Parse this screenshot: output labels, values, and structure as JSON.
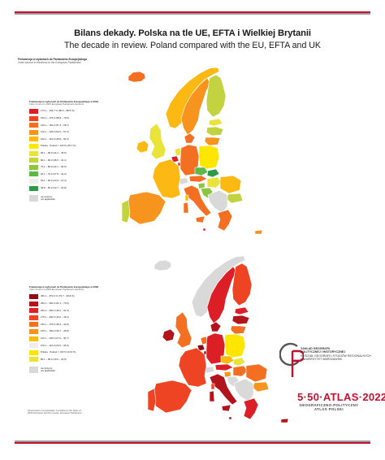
{
  "title_pl": "Bilans dekady. Polska na tle UE, EFTA i Wielkiej Brytanii",
  "title_en": "The decade in review. Poland compared with the EU, EFTA and UK",
  "map_header": {
    "pl": "Frekwencja w wyborach do Parlamentu Europejskiego",
    "en": "Voter turnout in elections to the European Parliament"
  },
  "legend_2019": {
    "title_pl": "Frekwencja w wyborach do Parlamentu Europejskiego w 2019",
    "title_en": "Voter turnout in 2019 European Parliament elections",
    "items": [
      {
        "label": "175,1 – 193,7 % (80,6 – 88,5 %)",
        "color": "#dc1f26"
      },
      {
        "label": "150,1 – 175,0 (68,8 – 79,9)",
        "color": "#ee4424"
      },
      {
        "label": "125,1 – 150,0 (57,4 – 68,7)",
        "color": "#f36f21"
      },
      {
        "label": "110,1 – 125,0 (50,3 – 57,3)",
        "color": "#f7941d"
      },
      {
        "label": "100,1 – 110,0 (45,8 – 50,2)",
        "color": "#fdb913"
      },
      {
        "label": "Polska · Poland = 100 % (45,7 %)",
        "color": "#ffe600"
      },
      {
        "label": "90,1 – 99,9 (41,2 – 45,6)",
        "color": "#e9e33a"
      },
      {
        "label": "80,1 – 90,0 (36,6 – 41,1)",
        "color": "#c3d23f"
      },
      {
        "label": "70,1 – 80,0 (32,1 – 36,5)",
        "color": "#8cc63f"
      },
      {
        "label": "60,1 – 70,0 (27,5 – 32,0)",
        "color": "#5cb848"
      },
      {
        "label": "50,1 – 60,0 (22,9 – 27,4)",
        "color": "#eeeeee"
      },
      {
        "label": "49,8 – 50,0 (22,7 – 22,8)",
        "color": "#2e9a47"
      }
    ],
    "nodata_pl": "nie dotyczy",
    "nodata_en": "not applicable"
  },
  "legend_2009": {
    "title_pl": "Frekwencja w wyborach do Parlamentu Europejskiego w 2009",
    "title_en": "Voter turnout in 2009 European Parliament elections",
    "items": [
      {
        "label": "300,1 – 370,0 % (73,7 – 90,8 %)",
        "color": "#8b0d16"
      },
      {
        "label": "250,1 – 300,0 (61,4 – 73,6)",
        "color": "#b2141c"
      },
      {
        "label": "200,1 – 250,0 (49,2 – 61,3)",
        "color": "#dc1f26"
      },
      {
        "label": "175,1 – 200,0 (43,0 – 49,1)",
        "color": "#ee4424"
      },
      {
        "label": "150,1 – 175,0 (36,9 – 42,9)",
        "color": "#f36f21"
      },
      {
        "label": "125,1 – 150,0 (30,7 – 36,8)",
        "color": "#f7941d"
      },
      {
        "label": "110,1 – 125,0 (27,0 – 30,7)",
        "color": "#fdb913"
      },
      {
        "label": "100,1 – 110,0 (24,6 – 26,9)",
        "color": "#eeeeee"
      },
      {
        "label": "Polska · Poland = 100 % (24,5 %)",
        "color": "#ffe600"
      },
      {
        "label": "80,1 – 99,0 (19,6 – 22,5)",
        "color": "#e9e33a"
      }
    ],
    "nodata_pl": "nie dotyczy",
    "nodata_en": "not applicable"
  },
  "source": {
    "line1": "Opracowano na podstawie: Compiled on the basis of:",
    "line2": "2019 European election results, European Parliament"
  },
  "department": {
    "line1": "ZAKŁAD GEOGRAFII",
    "line2": "POLITYCZNEJ I HISTORYCZNEJ",
    "line3": "WYDZIAŁ GEOGRAFII I STUDIÓW REGIONALNYCH",
    "line4": "UNIWERSYTET WARSZAWSKI"
  },
  "atlas": {
    "main": "5·50·ATLAS·2022",
    "sub1": "GEOGRAFICZNO-POLITYCZNY",
    "sub2": "ATLAS POLSKI"
  },
  "colors": {
    "accent_red": "#c8102e",
    "rule_grey": "#9a9a9a",
    "no_data": "#d9d9d9",
    "border": "#ffffff"
  },
  "maps": [
    {
      "name": "map-2019",
      "regions": [
        {
          "name": "iceland",
          "color": "#f36f21"
        },
        {
          "name": "norway",
          "color": "#fdb913"
        },
        {
          "name": "sweden",
          "color": "#f7941d"
        },
        {
          "name": "finland",
          "color": "#c3d23f"
        },
        {
          "name": "estonia",
          "color": "#e9e33a"
        },
        {
          "name": "latvia",
          "color": "#c3d23f"
        },
        {
          "name": "lithuania",
          "color": "#f7941d"
        },
        {
          "name": "ireland",
          "color": "#fdb913"
        },
        {
          "name": "united-kingdom",
          "color": "#e9e33a"
        },
        {
          "name": "denmark",
          "color": "#f36f21"
        },
        {
          "name": "netherlands",
          "color": "#e9e33a"
        },
        {
          "name": "belgium",
          "color": "#dc1f26"
        },
        {
          "name": "luxembourg",
          "color": "#dc1f26"
        },
        {
          "name": "germany",
          "color": "#f36f21"
        },
        {
          "name": "poland",
          "color": "#ffe600"
        },
        {
          "name": "czechia",
          "color": "#5cb848"
        },
        {
          "name": "slovakia",
          "color": "#2e9a47"
        },
        {
          "name": "austria",
          "color": "#f36f21"
        },
        {
          "name": "switzerland",
          "color": "#d9d9d9"
        },
        {
          "name": "france",
          "color": "#fdb913"
        },
        {
          "name": "hungary",
          "color": "#e9e33a"
        },
        {
          "name": "slovenia",
          "color": "#8cc63f"
        },
        {
          "name": "croatia",
          "color": "#8cc63f"
        },
        {
          "name": "romania",
          "color": "#fdb913"
        },
        {
          "name": "bulgaria",
          "color": "#c3d23f"
        },
        {
          "name": "balkans-non-eu",
          "color": "#d9d9d9"
        },
        {
          "name": "greece",
          "color": "#f36f21"
        },
        {
          "name": "italy",
          "color": "#f36f21"
        },
        {
          "name": "spain",
          "color": "#f7941d"
        },
        {
          "name": "portugal",
          "color": "#c3d23f"
        },
        {
          "name": "sardinia",
          "color": "#f36f21"
        },
        {
          "name": "corsica",
          "color": "#fdb913"
        },
        {
          "name": "sicily",
          "color": "#f36f21"
        },
        {
          "name": "cyprus",
          "color": "#f7941d"
        },
        {
          "name": "malta",
          "color": "#dc1f26"
        }
      ]
    },
    {
      "name": "map-2009",
      "regions": [
        {
          "name": "iceland",
          "color": "#d9d9d9"
        },
        {
          "name": "norway",
          "color": "#d9d9d9"
        },
        {
          "name": "sweden",
          "color": "#dc1f26"
        },
        {
          "name": "finland",
          "color": "#ee4424"
        },
        {
          "name": "estonia",
          "color": "#dc1f26"
        },
        {
          "name": "latvia",
          "color": "#b2141c"
        },
        {
          "name": "lithuania",
          "color": "#f36f21"
        },
        {
          "name": "ireland",
          "color": "#b2141c"
        },
        {
          "name": "united-kingdom",
          "color": "#f36f21"
        },
        {
          "name": "denmark",
          "color": "#b2141c"
        },
        {
          "name": "netherlands",
          "color": "#f36f21"
        },
        {
          "name": "belgium",
          "color": "#8b0d16"
        },
        {
          "name": "luxembourg",
          "color": "#8b0d16"
        },
        {
          "name": "germany",
          "color": "#dc1f26"
        },
        {
          "name": "poland",
          "color": "#ffe600"
        },
        {
          "name": "czechia",
          "color": "#fdb913"
        },
        {
          "name": "slovakia",
          "color": "#e9e33a"
        },
        {
          "name": "austria",
          "color": "#dc1f26"
        },
        {
          "name": "switzerland",
          "color": "#d9d9d9"
        },
        {
          "name": "france",
          "color": "#ee4424"
        },
        {
          "name": "hungary",
          "color": "#f36f21"
        },
        {
          "name": "slovenia",
          "color": "#f7941d"
        },
        {
          "name": "croatia",
          "color": "#d9d9d9"
        },
        {
          "name": "romania",
          "color": "#f36f21"
        },
        {
          "name": "bulgaria",
          "color": "#f7941d"
        },
        {
          "name": "balkans-non-eu",
          "color": "#d9d9d9"
        },
        {
          "name": "greece",
          "color": "#dc1f26"
        },
        {
          "name": "italy",
          "color": "#b2141c"
        },
        {
          "name": "spain",
          "color": "#ee4424"
        },
        {
          "name": "portugal",
          "color": "#ee4424"
        },
        {
          "name": "sardinia",
          "color": "#b2141c"
        },
        {
          "name": "corsica",
          "color": "#ee4424"
        },
        {
          "name": "sicily",
          "color": "#b2141c"
        },
        {
          "name": "cyprus",
          "color": "#b2141c"
        },
        {
          "name": "malta",
          "color": "#8b0d16"
        }
      ]
    }
  ]
}
